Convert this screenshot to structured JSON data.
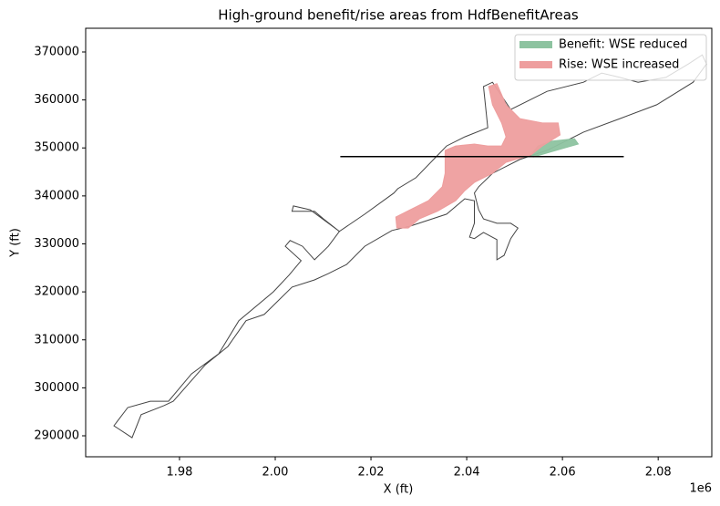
{
  "chart_data": {
    "type": "polygon",
    "title": "High-ground benefit/rise areas from HdfBenefitAreas",
    "x_label": "X (ft)",
    "y_label": "Y (ft)",
    "x_offset_label": "1e6",
    "xlim": [
      1960400,
      2091200
    ],
    "ylim": [
      285630,
      374940
    ],
    "xticks": [
      {
        "value": 1980000,
        "label": "1.98"
      },
      {
        "value": 2000000,
        "label": "2.00"
      },
      {
        "value": 2020000,
        "label": "2.02"
      },
      {
        "value": 2040000,
        "label": "2.04"
      },
      {
        "value": 2060000,
        "label": "2.06"
      },
      {
        "value": 2080000,
        "label": "2.08"
      }
    ],
    "yticks": [
      290000,
      300000,
      310000,
      320000,
      330000,
      340000,
      350000,
      360000,
      370000
    ],
    "legend": "upper right",
    "outline": {
      "color": "#444444",
      "x": [
        1966300,
        1969200,
        1973900,
        1977700,
        1982500,
        1988200,
        1992400,
        1999600,
        2002900,
        2005400,
        2002100,
        2003100,
        2005700,
        2008200,
        2011100,
        2013400,
        2010100,
        2008200,
        2003500,
        2003800,
        2007300,
        2011100,
        2013400,
        2018700,
        2024800,
        2025600,
        2029400,
        2035800,
        2039600,
        2044400,
        2043500,
        2045400,
        2049200,
        2056800,
        2064400,
        2068200,
        2072000,
        2075800,
        2081600,
        2086300,
        2089200,
        2090100,
        2087300,
        2079700,
        2072000,
        2064400,
        2056800,
        2051100,
        2045400,
        2042500,
        2041600,
        2042500,
        2043500,
        2046300,
        2049200,
        2050700,
        2049200,
        2047800,
        2046300,
        2046300,
        2043500,
        2041600,
        2040600,
        2041600,
        2041600,
        2039600,
        2035800,
        2028200,
        2024400,
        2018700,
        2014900,
        2011100,
        2008200,
        2003500,
        1997700,
        1993900,
        1990100,
        1985400,
        1978700,
        1976800,
        1972000,
        1970100
      ],
      "y": [
        292100,
        295900,
        297200,
        297200,
        302900,
        307100,
        314000,
        320000,
        323500,
        326500,
        329500,
        330700,
        329500,
        326700,
        329500,
        332600,
        335200,
        336800,
        336800,
        337900,
        337100,
        334300,
        332600,
        336200,
        340600,
        341500,
        343800,
        350400,
        352300,
        354200,
        362800,
        363700,
        358000,
        361800,
        363700,
        365600,
        364700,
        363700,
        364700,
        367500,
        369400,
        367500,
        363700,
        359000,
        356100,
        353300,
        349500,
        347600,
        344700,
        341900,
        340600,
        337100,
        335200,
        334300,
        334300,
        333300,
        331100,
        327600,
        326700,
        330900,
        332400,
        331100,
        331400,
        334300,
        339000,
        339400,
        336200,
        333700,
        332800,
        329500,
        325700,
        323800,
        322500,
        321000,
        315300,
        314000,
        308600,
        304800,
        297200,
        296300,
        294400,
        289600
      ]
    },
    "line": {
      "color": "#000000",
      "x": [
        2013600,
        2072800
      ],
      "y": [
        348200,
        348200
      ]
    },
    "series": [
      {
        "name": "Benefit: WSE reduced",
        "color": "#8dc3a0",
        "x": [
          2053400,
          2054900,
          2057700,
          2062500,
          2063300,
          2058700,
          2053900
        ],
        "y": [
          348500,
          350400,
          351400,
          351900,
          350800,
          349500,
          348100
        ]
      },
      {
        "name": "Rise: WSE increased",
        "color": "#ee9e9e",
        "x": [
          2044600,
          2046300,
          2048200,
          2051100,
          2055800,
          2059100,
          2059500,
          2055800,
          2053400,
          2048200,
          2045400,
          2041600,
          2039600,
          2037700,
          2033900,
          2030100,
          2027800,
          2025400,
          2025200,
          2028200,
          2032000,
          2034900,
          2035500,
          2035500,
          2037700,
          2041600,
          2044400,
          2047300,
          2048200,
          2047300,
          2045400
        ],
        "y": [
          362800,
          363400,
          359000,
          356100,
          355200,
          355200,
          352700,
          350400,
          348500,
          347000,
          344700,
          342800,
          341100,
          339000,
          336800,
          335200,
          333300,
          333300,
          335600,
          337100,
          339000,
          341900,
          344700,
          349500,
          350400,
          350800,
          350400,
          350400,
          352300,
          355200,
          359000
        ]
      }
    ]
  }
}
